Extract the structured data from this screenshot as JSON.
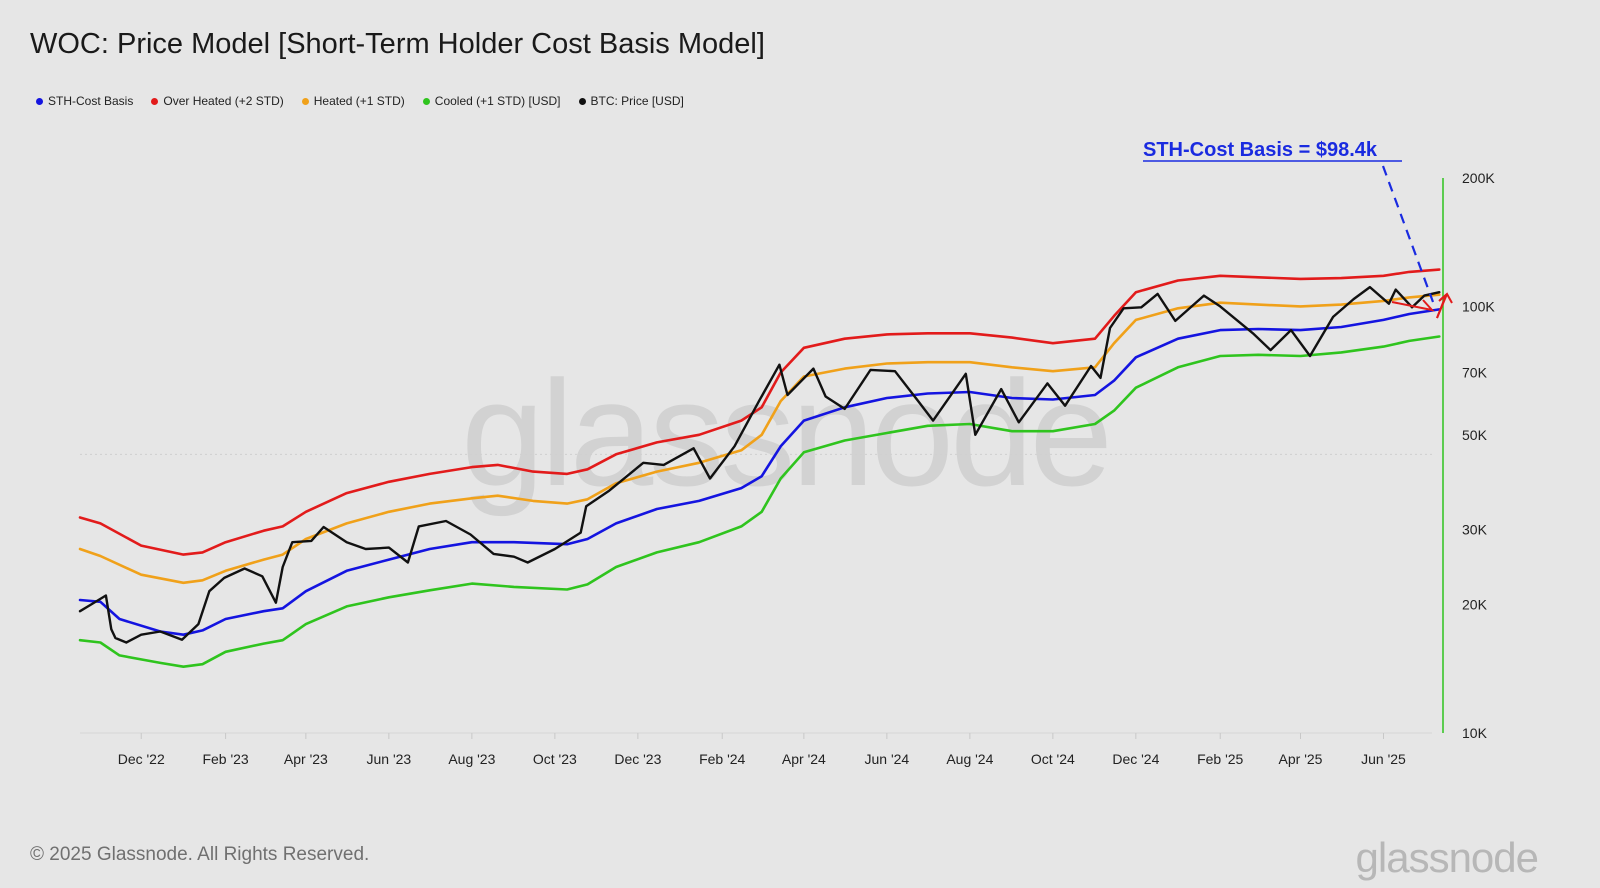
{
  "title": "WOC: Price Model [Short-Term Holder Cost Basis Model]",
  "legend": [
    {
      "label": "STH-Cost Basis",
      "color": "#1414e0"
    },
    {
      "label": "Over Heated (+2 STD)",
      "color": "#e21b1b"
    },
    {
      "label": "Heated (+1 STD)",
      "color": "#f0a11a"
    },
    {
      "label": "Cooled (+1 STD) [USD]",
      "color": "#2fc41e"
    },
    {
      "label": "BTC: Price [USD]",
      "color": "#111111"
    }
  ],
  "annotation": {
    "text": "STH-Cost Basis = $98.4k",
    "color": "#1a2be0"
  },
  "watermark": "glassnode",
  "footer": {
    "copyright": "© 2025 Glassnode. All Rights Reserved.",
    "logo": "glassnode"
  },
  "chart_data": {
    "type": "line",
    "y_scale": "log",
    "ylim": [
      10000,
      200000
    ],
    "y_ticks": [
      {
        "value": 200000,
        "label": "200K"
      },
      {
        "value": 100000,
        "label": "100K"
      },
      {
        "value": 70000,
        "label": "70K"
      },
      {
        "value": 50000,
        "label": "50K"
      },
      {
        "value": 30000,
        "label": "30K"
      },
      {
        "value": 20000,
        "label": "20K"
      },
      {
        "value": 10000,
        "label": "10K"
      }
    ],
    "xlim": [
      "2022-10-17",
      "2025-07-14"
    ],
    "x_ticks": [
      {
        "date": "2022-12-01",
        "label": "Dec '22"
      },
      {
        "date": "2023-02-01",
        "label": "Feb '23"
      },
      {
        "date": "2023-04-01",
        "label": "Apr '23"
      },
      {
        "date": "2023-06-01",
        "label": "Jun '23"
      },
      {
        "date": "2023-08-01",
        "label": "Aug '23"
      },
      {
        "date": "2023-10-01",
        "label": "Oct '23"
      },
      {
        "date": "2023-12-01",
        "label": "Dec '23"
      },
      {
        "date": "2024-02-01",
        "label": "Feb '24"
      },
      {
        "date": "2024-04-01",
        "label": "Apr '24"
      },
      {
        "date": "2024-06-01",
        "label": "Jun '24"
      },
      {
        "date": "2024-08-01",
        "label": "Aug '24"
      },
      {
        "date": "2024-10-01",
        "label": "Oct '24"
      },
      {
        "date": "2024-12-01",
        "label": "Dec '24"
      },
      {
        "date": "2025-02-01",
        "label": "Feb '25"
      },
      {
        "date": "2025-04-01",
        "label": "Apr '25"
      },
      {
        "date": "2025-06-01",
        "label": "Jun '25"
      }
    ],
    "series": [
      {
        "name": "Over Heated (+2 STD)",
        "color": "#e21b1b",
        "points": [
          [
            "2022-10-17",
            32000
          ],
          [
            "2022-11-01",
            31000
          ],
          [
            "2022-12-01",
            27500
          ],
          [
            "2023-01-01",
            26200
          ],
          [
            "2023-01-15",
            26500
          ],
          [
            "2023-02-01",
            28000
          ],
          [
            "2023-03-01",
            29800
          ],
          [
            "2023-03-15",
            30500
          ],
          [
            "2023-04-01",
            33000
          ],
          [
            "2023-05-01",
            36500
          ],
          [
            "2023-06-01",
            38800
          ],
          [
            "2023-07-01",
            40500
          ],
          [
            "2023-08-01",
            42000
          ],
          [
            "2023-08-20",
            42500
          ],
          [
            "2023-09-15",
            41000
          ],
          [
            "2023-10-10",
            40500
          ],
          [
            "2023-10-25",
            41500
          ],
          [
            "2023-11-15",
            45000
          ],
          [
            "2023-12-15",
            48000
          ],
          [
            "2024-01-15",
            50000
          ],
          [
            "2024-02-15",
            54000
          ],
          [
            "2024-03-01",
            58000
          ],
          [
            "2024-03-15",
            70000
          ],
          [
            "2024-04-01",
            80000
          ],
          [
            "2024-05-01",
            84000
          ],
          [
            "2024-06-01",
            86000
          ],
          [
            "2024-07-01",
            86500
          ],
          [
            "2024-08-01",
            86500
          ],
          [
            "2024-09-01",
            84500
          ],
          [
            "2024-10-01",
            82000
          ],
          [
            "2024-11-01",
            84000
          ],
          [
            "2024-11-15",
            95000
          ],
          [
            "2024-12-01",
            108000
          ],
          [
            "2025-01-01",
            115000
          ],
          [
            "2025-02-01",
            118000
          ],
          [
            "2025-03-01",
            117000
          ],
          [
            "2025-04-01",
            116000
          ],
          [
            "2025-05-01",
            116500
          ],
          [
            "2025-06-01",
            118000
          ],
          [
            "2025-06-20",
            120500
          ],
          [
            "2025-07-12",
            122000
          ]
        ]
      },
      {
        "name": "Heated (+1 STD)",
        "color": "#f0a11a",
        "points": [
          [
            "2022-10-17",
            27000
          ],
          [
            "2022-11-01",
            26000
          ],
          [
            "2022-12-01",
            23500
          ],
          [
            "2023-01-01",
            22500
          ],
          [
            "2023-01-15",
            22800
          ],
          [
            "2023-02-01",
            24000
          ],
          [
            "2023-03-01",
            25500
          ],
          [
            "2023-03-15",
            26200
          ],
          [
            "2023-04-01",
            28500
          ],
          [
            "2023-05-01",
            31000
          ],
          [
            "2023-06-01",
            33000
          ],
          [
            "2023-07-01",
            34500
          ],
          [
            "2023-08-01",
            35500
          ],
          [
            "2023-08-20",
            36000
          ],
          [
            "2023-09-15",
            35000
          ],
          [
            "2023-10-10",
            34500
          ],
          [
            "2023-10-25",
            35300
          ],
          [
            "2023-11-15",
            38500
          ],
          [
            "2023-12-15",
            41000
          ],
          [
            "2024-01-15",
            43000
          ],
          [
            "2024-02-15",
            46000
          ],
          [
            "2024-03-01",
            50000
          ],
          [
            "2024-03-15",
            60000
          ],
          [
            "2024-04-01",
            68500
          ],
          [
            "2024-05-01",
            71500
          ],
          [
            "2024-06-01",
            73500
          ],
          [
            "2024-07-01",
            74000
          ],
          [
            "2024-08-01",
            74000
          ],
          [
            "2024-09-01",
            72000
          ],
          [
            "2024-10-01",
            70500
          ],
          [
            "2024-11-01",
            72000
          ],
          [
            "2024-11-15",
            82000
          ],
          [
            "2024-12-01",
            93000
          ],
          [
            "2025-01-01",
            99000
          ],
          [
            "2025-02-01",
            102000
          ],
          [
            "2025-03-01",
            101000
          ],
          [
            "2025-04-01",
            100000
          ],
          [
            "2025-05-01",
            101000
          ],
          [
            "2025-06-01",
            103000
          ],
          [
            "2025-06-20",
            105000
          ],
          [
            "2025-07-12",
            106500
          ]
        ]
      },
      {
        "name": "STH-Cost Basis",
        "color": "#1414e0",
        "points": [
          [
            "2022-10-17",
            20500
          ],
          [
            "2022-11-01",
            20300
          ],
          [
            "2022-11-15",
            18500
          ],
          [
            "2022-12-15",
            17300
          ],
          [
            "2023-01-01",
            17000
          ],
          [
            "2023-01-15",
            17400
          ],
          [
            "2023-02-01",
            18500
          ],
          [
            "2023-03-01",
            19300
          ],
          [
            "2023-03-15",
            19600
          ],
          [
            "2023-04-01",
            21500
          ],
          [
            "2023-05-01",
            24000
          ],
          [
            "2023-06-01",
            25500
          ],
          [
            "2023-07-01",
            27000
          ],
          [
            "2023-08-01",
            28000
          ],
          [
            "2023-09-01",
            28000
          ],
          [
            "2023-10-10",
            27700
          ],
          [
            "2023-10-25",
            28500
          ],
          [
            "2023-11-15",
            31000
          ],
          [
            "2023-12-15",
            33500
          ],
          [
            "2024-01-15",
            35000
          ],
          [
            "2024-02-15",
            37500
          ],
          [
            "2024-03-01",
            40000
          ],
          [
            "2024-03-15",
            47000
          ],
          [
            "2024-04-01",
            54000
          ],
          [
            "2024-05-01",
            58000
          ],
          [
            "2024-06-01",
            61000
          ],
          [
            "2024-07-01",
            62500
          ],
          [
            "2024-08-01",
            63000
          ],
          [
            "2024-09-01",
            61000
          ],
          [
            "2024-10-01",
            60500
          ],
          [
            "2024-11-01",
            62000
          ],
          [
            "2024-11-15",
            67000
          ],
          [
            "2024-12-01",
            76000
          ],
          [
            "2025-01-01",
            84000
          ],
          [
            "2025-02-01",
            88000
          ],
          [
            "2025-03-01",
            88500
          ],
          [
            "2025-04-01",
            88000
          ],
          [
            "2025-05-01",
            89500
          ],
          [
            "2025-06-01",
            93000
          ],
          [
            "2025-06-20",
            96000
          ],
          [
            "2025-07-12",
            98400
          ]
        ]
      },
      {
        "name": "Cooled (+1 STD) [USD]",
        "color": "#2fc41e",
        "points": [
          [
            "2022-10-17",
            16500
          ],
          [
            "2022-11-01",
            16300
          ],
          [
            "2022-11-15",
            15200
          ],
          [
            "2022-12-15",
            14600
          ],
          [
            "2023-01-01",
            14300
          ],
          [
            "2023-01-15",
            14500
          ],
          [
            "2023-02-01",
            15500
          ],
          [
            "2023-03-01",
            16200
          ],
          [
            "2023-03-15",
            16500
          ],
          [
            "2023-04-01",
            18000
          ],
          [
            "2023-05-01",
            19800
          ],
          [
            "2023-06-01",
            20800
          ],
          [
            "2023-07-01",
            21600
          ],
          [
            "2023-08-01",
            22400
          ],
          [
            "2023-09-01",
            22000
          ],
          [
            "2023-10-10",
            21700
          ],
          [
            "2023-10-25",
            22300
          ],
          [
            "2023-11-15",
            24500
          ],
          [
            "2023-12-15",
            26500
          ],
          [
            "2024-01-15",
            28000
          ],
          [
            "2024-02-15",
            30500
          ],
          [
            "2024-03-01",
            33000
          ],
          [
            "2024-03-15",
            39500
          ],
          [
            "2024-04-01",
            45500
          ],
          [
            "2024-05-01",
            48500
          ],
          [
            "2024-06-01",
            50500
          ],
          [
            "2024-07-01",
            52500
          ],
          [
            "2024-08-01",
            53000
          ],
          [
            "2024-09-01",
            51000
          ],
          [
            "2024-10-01",
            51000
          ],
          [
            "2024-11-01",
            53000
          ],
          [
            "2024-11-15",
            57000
          ],
          [
            "2024-12-01",
            64500
          ],
          [
            "2025-01-01",
            72000
          ],
          [
            "2025-02-01",
            76500
          ],
          [
            "2025-03-01",
            77000
          ],
          [
            "2025-04-01",
            76500
          ],
          [
            "2025-05-01",
            78000
          ],
          [
            "2025-06-01",
            80500
          ],
          [
            "2025-06-20",
            83000
          ],
          [
            "2025-07-12",
            85000
          ]
        ]
      },
      {
        "name": "BTC: Price [USD]",
        "color": "#111111",
        "points": [
          [
            "2022-10-17",
            19300
          ],
          [
            "2022-10-25",
            20000
          ],
          [
            "2022-11-05",
            21000
          ],
          [
            "2022-11-09",
            17500
          ],
          [
            "2022-11-12",
            16700
          ],
          [
            "2022-11-20",
            16300
          ],
          [
            "2022-12-01",
            17000
          ],
          [
            "2022-12-15",
            17300
          ],
          [
            "2022-12-31",
            16550
          ],
          [
            "2023-01-12",
            18000
          ],
          [
            "2023-01-20",
            21500
          ],
          [
            "2023-01-31",
            23100
          ],
          [
            "2023-02-15",
            24300
          ],
          [
            "2023-02-28",
            23300
          ],
          [
            "2023-03-10",
            20200
          ],
          [
            "2023-03-15",
            24500
          ],
          [
            "2023-03-22",
            28000
          ],
          [
            "2023-04-05",
            28200
          ],
          [
            "2023-04-14",
            30400
          ],
          [
            "2023-05-01",
            28000
          ],
          [
            "2023-05-15",
            27000
          ],
          [
            "2023-06-01",
            27200
          ],
          [
            "2023-06-15",
            25100
          ],
          [
            "2023-06-23",
            30500
          ],
          [
            "2023-07-13",
            31400
          ],
          [
            "2023-07-31",
            29200
          ],
          [
            "2023-08-17",
            26300
          ],
          [
            "2023-09-01",
            25900
          ],
          [
            "2023-09-11",
            25100
          ],
          [
            "2023-10-01",
            27000
          ],
          [
            "2023-10-20",
            29500
          ],
          [
            "2023-10-24",
            34000
          ],
          [
            "2023-11-10",
            37000
          ],
          [
            "2023-12-05",
            43000
          ],
          [
            "2023-12-20",
            42500
          ],
          [
            "2024-01-11",
            46500
          ],
          [
            "2024-01-23",
            39500
          ],
          [
            "2024-02-10",
            47000
          ],
          [
            "2024-02-28",
            60000
          ],
          [
            "2024-03-14",
            73000
          ],
          [
            "2024-03-20",
            62000
          ],
          [
            "2024-04-08",
            71500
          ],
          [
            "2024-04-17",
            61500
          ],
          [
            "2024-05-01",
            57500
          ],
          [
            "2024-05-20",
            71000
          ],
          [
            "2024-06-07",
            70500
          ],
          [
            "2024-06-24",
            60000
          ],
          [
            "2024-07-05",
            54000
          ],
          [
            "2024-07-29",
            69500
          ],
          [
            "2024-08-05",
            50000
          ],
          [
            "2024-08-24",
            64000
          ],
          [
            "2024-09-06",
            53500
          ],
          [
            "2024-09-27",
            66000
          ],
          [
            "2024-10-10",
            58500
          ],
          [
            "2024-10-29",
            72500
          ],
          [
            "2024-11-05",
            68000
          ],
          [
            "2024-11-12",
            89000
          ],
          [
            "2024-11-22",
            99000
          ],
          [
            "2024-12-05",
            99500
          ],
          [
            "2024-12-17",
            107000
          ],
          [
            "2024-12-30",
            92500
          ],
          [
            "2025-01-20",
            106000
          ],
          [
            "2025-02-01",
            100000
          ],
          [
            "2025-02-25",
            86500
          ],
          [
            "2025-03-10",
            79000
          ],
          [
            "2025-03-25",
            88000
          ],
          [
            "2025-04-08",
            76500
          ],
          [
            "2025-04-25",
            94500
          ],
          [
            "2025-05-10",
            104000
          ],
          [
            "2025-05-22",
            111000
          ],
          [
            "2025-06-05",
            101500
          ],
          [
            "2025-06-10",
            109500
          ],
          [
            "2025-06-22",
            99500
          ],
          [
            "2025-07-01",
            106000
          ],
          [
            "2025-07-12",
            108000
          ]
        ]
      }
    ]
  }
}
